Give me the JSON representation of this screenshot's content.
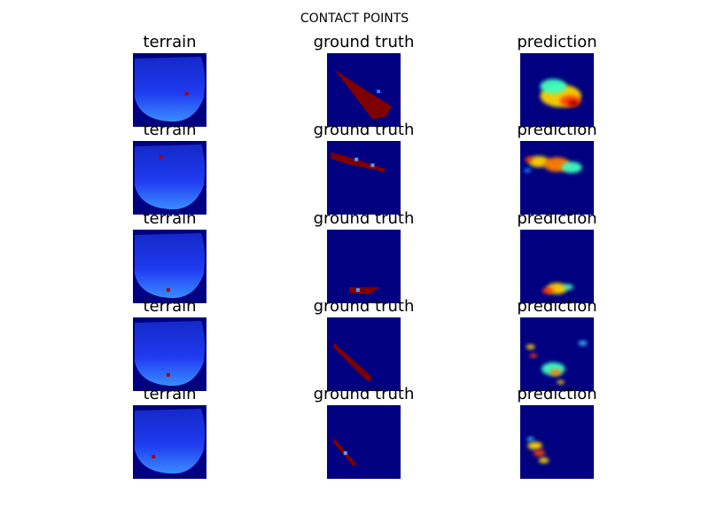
{
  "figure": {
    "suptitle": "CONTACT POINTS"
  },
  "chart_data": {
    "type": "heatmap",
    "title": "CONTACT POINTS",
    "columns": [
      "terrain",
      "ground truth",
      "prediction"
    ],
    "rows": 5,
    "colormap": "jet",
    "grid": false,
    "panels": [
      {
        "row": 1,
        "terrain": {
          "background": "#000080",
          "mask": "#1a2eea",
          "shade_bottom": true,
          "markers": [
            {
              "x": 0.73,
              "y": 0.55
            }
          ]
        },
        "ground_truth": {
          "background": "#000080",
          "shape": "polygon",
          "points": [
            [
              0.1,
              0.22
            ],
            [
              0.55,
              0.52
            ],
            [
              0.88,
              0.72
            ],
            [
              0.8,
              0.86
            ],
            [
              0.62,
              0.9
            ]
          ],
          "color": "#7f0000",
          "accents": [
            {
              "x": 0.7,
              "y": 0.52,
              "color": "#2a7fff"
            }
          ]
        },
        "prediction": {
          "background": "#000080",
          "blobs": [
            {
              "x": 0.55,
              "y": 0.58,
              "r": 0.28,
              "color": "#ffd400"
            },
            {
              "x": 0.45,
              "y": 0.45,
              "r": 0.18,
              "color": "#3fffbf"
            },
            {
              "x": 0.68,
              "y": 0.65,
              "r": 0.14,
              "color": "#ff4000"
            },
            {
              "x": 0.72,
              "y": 0.68,
              "r": 0.07,
              "color": "#a00000"
            }
          ]
        }
      },
      {
        "row": 2,
        "terrain": {
          "background": "#000080",
          "mask": "#1a2eea",
          "shade_bottom": true,
          "markers": [
            {
              "x": 0.38,
              "y": 0.22
            }
          ]
        },
        "ground_truth": {
          "background": "#000080",
          "shape": "polygon",
          "points": [
            [
              0.05,
              0.15
            ],
            [
              0.3,
              0.22
            ],
            [
              0.55,
              0.3
            ],
            [
              0.8,
              0.38
            ],
            [
              0.78,
              0.42
            ],
            [
              0.3,
              0.32
            ],
            [
              0.05,
              0.24
            ]
          ],
          "color": "#7f0000",
          "accents": [
            {
              "x": 0.4,
              "y": 0.25,
              "color": "#4fa0ff"
            },
            {
              "x": 0.62,
              "y": 0.33,
              "color": "#4fa0ff"
            }
          ]
        },
        "prediction": {
          "background": "#000080",
          "blobs": [
            {
              "x": 0.25,
              "y": 0.28,
              "r": 0.14,
              "color": "#ffd400"
            },
            {
              "x": 0.5,
              "y": 0.32,
              "r": 0.18,
              "color": "#ff7f00"
            },
            {
              "x": 0.7,
              "y": 0.36,
              "r": 0.14,
              "color": "#3fffbf"
            },
            {
              "x": 0.12,
              "y": 0.25,
              "r": 0.06,
              "color": "#ff4000"
            },
            {
              "x": 0.1,
              "y": 0.4,
              "r": 0.05,
              "color": "#1f8fff"
            }
          ]
        }
      },
      {
        "row": 3,
        "terrain": {
          "background": "#000080",
          "mask": "#1a2eea",
          "shade_bottom": true,
          "markers": [
            {
              "x": 0.48,
              "y": 0.82
            }
          ]
        },
        "ground_truth": {
          "background": "#000080",
          "shape": "polygon",
          "points": [
            [
              0.3,
              0.78
            ],
            [
              0.72,
              0.78
            ],
            [
              0.58,
              0.88
            ],
            [
              0.3,
              0.86
            ]
          ],
          "color": "#7f0000",
          "accents": [
            {
              "x": 0.42,
              "y": 0.82,
              "color": "#4fa0ff"
            }
          ]
        },
        "prediction": {
          "background": "#000080",
          "blobs": [
            {
              "x": 0.5,
              "y": 0.8,
              "r": 0.14,
              "color": "#ffd400"
            },
            {
              "x": 0.38,
              "y": 0.83,
              "r": 0.08,
              "color": "#ff4000"
            },
            {
              "x": 0.65,
              "y": 0.78,
              "r": 0.07,
              "color": "#3fffbf"
            }
          ]
        }
      },
      {
        "row": 4,
        "terrain": {
          "background": "#000080",
          "mask": "#1a2eea",
          "shade_bottom": true,
          "markers": [
            {
              "x": 0.48,
              "y": 0.78
            }
          ]
        },
        "ground_truth": {
          "background": "#000080",
          "shape": "polygon",
          "points": [
            [
              0.1,
              0.35
            ],
            [
              0.6,
              0.8
            ],
            [
              0.58,
              0.88
            ],
            [
              0.52,
              0.84
            ],
            [
              0.08,
              0.4
            ]
          ],
          "color": "#7f0000",
          "accents": []
        },
        "prediction": {
          "background": "#000080",
          "blobs": [
            {
              "x": 0.45,
              "y": 0.7,
              "r": 0.16,
              "color": "#3fffbf"
            },
            {
              "x": 0.48,
              "y": 0.75,
              "r": 0.08,
              "color": "#ff7f00"
            },
            {
              "x": 0.14,
              "y": 0.4,
              "r": 0.06,
              "color": "#ffd400"
            },
            {
              "x": 0.18,
              "y": 0.52,
              "r": 0.05,
              "color": "#ff4000"
            },
            {
              "x": 0.85,
              "y": 0.35,
              "r": 0.06,
              "color": "#3fbfff"
            },
            {
              "x": 0.55,
              "y": 0.88,
              "r": 0.05,
              "color": "#ffd400"
            }
          ]
        }
      },
      {
        "row": 5,
        "terrain": {
          "background": "#000080",
          "mask": "#1a2eea",
          "shade_bottom": true,
          "markers": [
            {
              "x": 0.28,
              "y": 0.7
            }
          ]
        },
        "ground_truth": {
          "background": "#000080",
          "shape": "polygon",
          "points": [
            [
              0.1,
              0.45
            ],
            [
              0.4,
              0.8
            ],
            [
              0.36,
              0.83
            ],
            [
              0.08,
              0.5
            ]
          ],
          "color": "#7f0000",
          "accents": [
            {
              "x": 0.25,
              "y": 0.65,
              "color": "#4fa0ff"
            }
          ]
        },
        "prediction": {
          "background": "#000080",
          "blobs": [
            {
              "x": 0.2,
              "y": 0.55,
              "r": 0.1,
              "color": "#ffd400"
            },
            {
              "x": 0.26,
              "y": 0.65,
              "r": 0.08,
              "color": "#ff4000"
            },
            {
              "x": 0.32,
              "y": 0.75,
              "r": 0.07,
              "color": "#ffd400"
            },
            {
              "x": 0.14,
              "y": 0.46,
              "r": 0.05,
              "color": "#3fbfff"
            }
          ]
        }
      }
    ]
  }
}
